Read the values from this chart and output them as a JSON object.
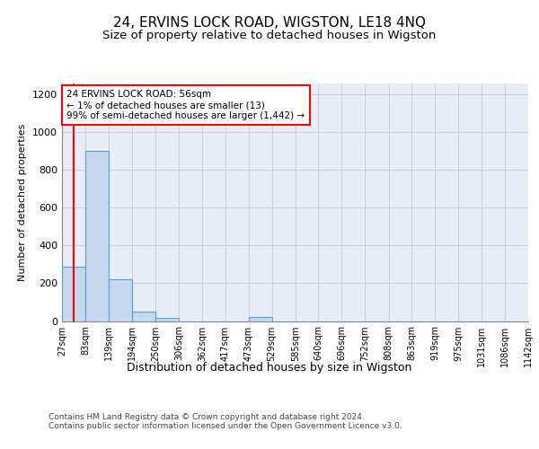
{
  "title": "24, ERVINS LOCK ROAD, WIGSTON, LE18 4NQ",
  "subtitle": "Size of property relative to detached houses in Wigston",
  "xlabel": "Distribution of detached houses by size in Wigston",
  "ylabel": "Number of detached properties",
  "bar_edges": [
    27,
    83,
    139,
    194,
    250,
    306,
    362,
    417,
    473,
    529,
    585,
    640,
    696,
    752,
    808,
    863,
    919,
    975,
    1031,
    1086,
    1142
  ],
  "bar_heights": [
    290,
    900,
    220,
    50,
    15,
    0,
    0,
    0,
    20,
    0,
    0,
    0,
    0,
    0,
    0,
    0,
    0,
    0,
    0,
    0
  ],
  "bar_color": "#c5d8ee",
  "bar_edge_color": "#5b9bd5",
  "property_line_x": 56,
  "property_line_color": "red",
  "annotation_text": "24 ERVINS LOCK ROAD: 56sqm\n← 1% of detached houses are smaller (13)\n99% of semi-detached houses are larger (1,442) →",
  "annotation_box_color": "red",
  "ylim": [
    0,
    1260
  ],
  "yticks": [
    0,
    200,
    400,
    600,
    800,
    1000,
    1200
  ],
  "grid_color": "#c8d0dc",
  "background_color": "#e8eef8",
  "footer_text": "Contains HM Land Registry data © Crown copyright and database right 2024.\nContains public sector information licensed under the Open Government Licence v3.0.",
  "title_fontsize": 11,
  "subtitle_fontsize": 9.5
}
